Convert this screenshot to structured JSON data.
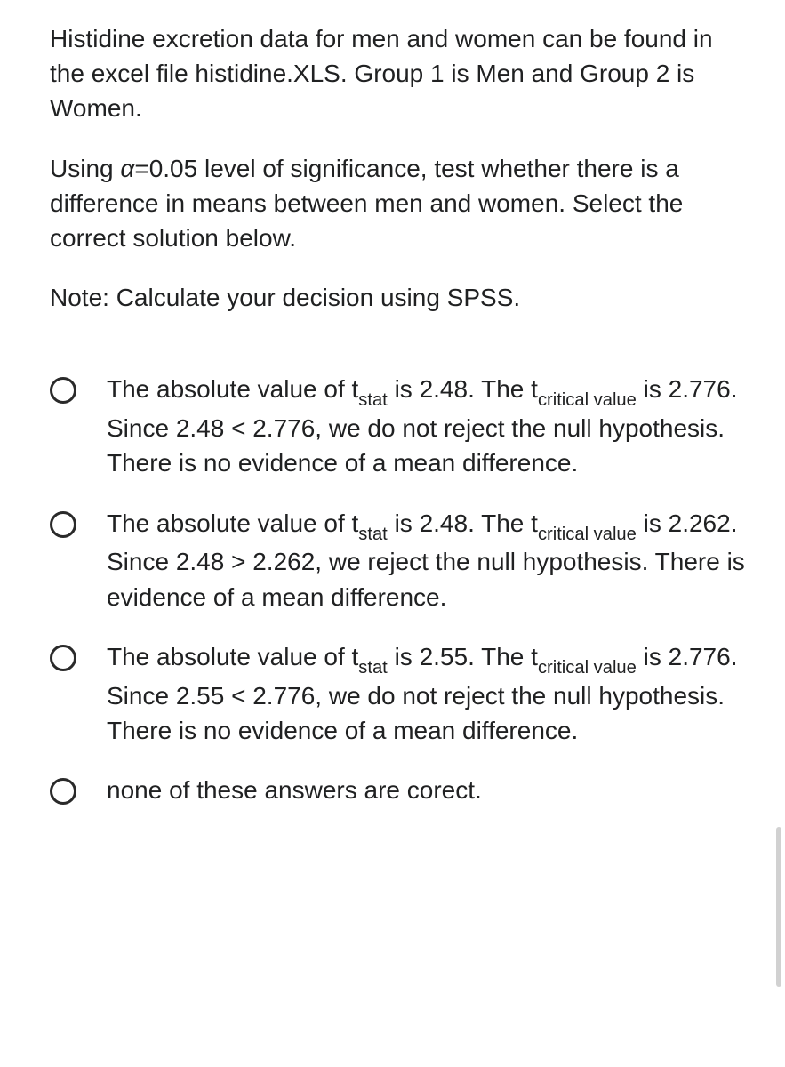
{
  "question": {
    "para1": "Histidine excretion data for men and women can be found in the excel file histidine.XLS. Group 1 is Men and Group 2 is Women.",
    "para2_pre": "Using ",
    "para2_alpha": "α",
    "para2_post": "=0.05 level of significance, test whether there is a difference in means between men and women. Select the correct solution below.",
    "para3": "Note: Calculate your decision using SPSS."
  },
  "t_label": "t",
  "sub_stat": "stat",
  "sub_crit": "critical value",
  "options": [
    {
      "pre": "The absolute value of ",
      "mid1": " is 2.48. The ",
      "mid2": " is 2.776. Since 2.48 < 2.776, we do not reject the null hypothesis. There is no evidence of a mean difference."
    },
    {
      "pre": "The absolute value of ",
      "mid1": " is 2.48. The ",
      "mid2": " is 2.262. Since 2.48 > 2.262, we reject the null hypothesis. There is evidence of a mean difference."
    },
    {
      "pre": "The absolute value of ",
      "mid1": " is 2.55. The ",
      "mid2": " is 2.776. Since 2.55 < 2.776, we do not reject the null hypothesis. There is no evidence of a mean difference."
    }
  ],
  "option4": "none of these answers are corect."
}
